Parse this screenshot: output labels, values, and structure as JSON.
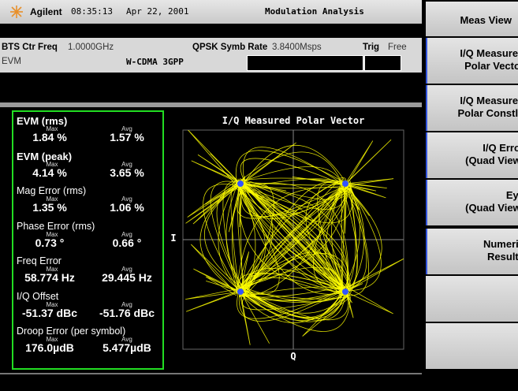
{
  "header": {
    "logo": "Agilent",
    "time": "08:35:13",
    "date": "Apr 22, 2001",
    "title": "Modulation Analysis"
  },
  "info": {
    "ctr_freq_label": "BTS Ctr Freq",
    "ctr_freq": "1.0000GHz",
    "symb_rate_label": "QPSK Symb Rate",
    "symb_rate": "3.8400Msps",
    "trig_label": "Trig",
    "trig": "Free",
    "measurement": "EVM",
    "standard": "W-CDMA 3GPP"
  },
  "metrics": [
    {
      "label": "EVM (rms)",
      "max_label": "Max",
      "avg_label": "Avg",
      "max": "1.84 %",
      "avg": "1.57 %"
    },
    {
      "label": "EVM (peak)",
      "max_label": "Max",
      "avg_label": "Avg",
      "max": "4.14 %",
      "avg": "3.65 %"
    },
    {
      "label": "Mag Error (rms)",
      "max_label": "Max",
      "avg_label": "Avg",
      "max": "1.35 %",
      "avg": "1.06 %"
    },
    {
      "label": "Phase Error (rms)",
      "max_label": "Max",
      "avg_label": "Avg",
      "max": "0.73 °",
      "avg": "0.66 °"
    },
    {
      "label": "Freq Error",
      "max_label": "Max",
      "avg_label": "Avg",
      "max": "58.774 Hz",
      "avg": "29.445 Hz"
    },
    {
      "label": "I/Q Offset",
      "max_label": "Max",
      "avg_label": "Avg",
      "max": "-51.37 dBc",
      "avg": "-51.76 dBc"
    },
    {
      "label": "Droop Error (per symbol)",
      "max_label": "Max",
      "avg_label": "Avg",
      "max": "176.0µdB",
      "avg": "5.477µdB"
    }
  ],
  "plot": {
    "title": "I/Q Measured Polar Vector",
    "y_label": "I",
    "x_label": "Q"
  },
  "softkeys": {
    "title": "Meas View",
    "keys": [
      {
        "lines": [
          "I/Q Measured",
          "Polar Vector"
        ]
      },
      {
        "lines": [
          "I/Q Measured",
          "Polar Constln"
        ]
      },
      {
        "lines": [
          "I/Q Error",
          "(Quad View)"
        ]
      },
      {
        "lines": [
          "Eye",
          "(Quad View)"
        ]
      },
      {
        "lines": [
          "Numeric",
          "Results"
        ]
      }
    ]
  }
}
